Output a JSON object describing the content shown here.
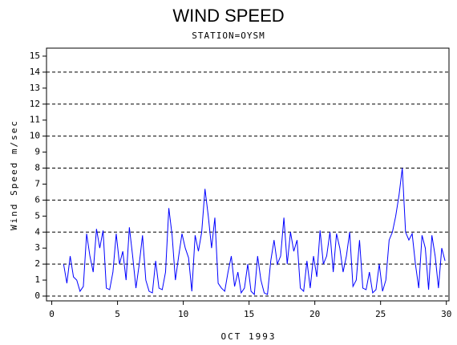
{
  "chart_data": {
    "type": "line",
    "title": "WIND SPEED",
    "subtitle": "STATION=OYSM",
    "x_label": "OCT 1993",
    "y_label": "Wind Speed m/sec",
    "xlim": [
      -0.4,
      30.2
    ],
    "xticks": [
      0,
      5,
      10,
      15,
      20,
      25,
      30
    ],
    "ylim": [
      -0.3,
      15.5
    ],
    "yticks": [
      0,
      1,
      2,
      3,
      4,
      5,
      6,
      7,
      8,
      9,
      10,
      11,
      12,
      13,
      14,
      15
    ],
    "grid_y": [
      0,
      2,
      4,
      6,
      8,
      10,
      12,
      14
    ],
    "x": [
      0.9,
      1.15,
      1.4,
      1.65,
      1.9,
      2.15,
      2.4,
      2.65,
      2.9,
      3.15,
      3.4,
      3.65,
      3.9,
      4.15,
      4.4,
      4.65,
      4.9,
      5.15,
      5.4,
      5.65,
      5.9,
      6.15,
      6.4,
      6.65,
      6.9,
      7.15,
      7.4,
      7.65,
      7.9,
      8.15,
      8.4,
      8.65,
      8.9,
      9.15,
      9.4,
      9.65,
      9.9,
      10.15,
      10.4,
      10.65,
      10.9,
      11.15,
      11.4,
      11.65,
      11.9,
      12.15,
      12.4,
      12.65,
      12.9,
      13.15,
      13.4,
      13.65,
      13.9,
      14.15,
      14.4,
      14.65,
      14.9,
      15.15,
      15.4,
      15.65,
      15.9,
      16.15,
      16.4,
      16.65,
      16.9,
      17.15,
      17.4,
      17.65,
      17.9,
      18.15,
      18.4,
      18.65,
      18.9,
      19.15,
      19.4,
      19.65,
      19.9,
      20.15,
      20.4,
      20.65,
      20.9,
      21.15,
      21.4,
      21.65,
      21.9,
      22.15,
      22.4,
      22.65,
      22.9,
      23.15,
      23.4,
      23.65,
      23.9,
      24.15,
      24.4,
      24.65,
      24.9,
      25.15,
      25.4,
      25.65,
      25.9,
      26.15,
      26.4,
      26.65,
      26.9,
      27.15,
      27.4,
      27.65,
      27.9,
      28.15,
      28.4,
      28.65,
      28.9,
      29.15,
      29.4,
      29.65,
      29.9
    ],
    "series": [
      {
        "color": "#0000ff",
        "values": [
          2.0,
          0.8,
          2.5,
          1.2,
          1.0,
          0.3,
          0.6,
          3.9,
          2.5,
          1.5,
          4.2,
          3.0,
          4.1,
          0.5,
          0.4,
          1.5,
          3.9,
          2.0,
          2.8,
          1.0,
          4.3,
          2.5,
          0.5,
          2.0,
          3.8,
          1.0,
          0.3,
          0.2,
          2.2,
          0.5,
          0.4,
          1.5,
          5.5,
          3.8,
          1.0,
          2.5,
          3.9,
          3.0,
          2.4,
          0.3,
          3.8,
          2.8,
          4.0,
          6.7,
          5.0,
          3.0,
          4.9,
          0.8,
          0.5,
          0.3,
          1.5,
          2.5,
          0.6,
          1.5,
          0.2,
          0.5,
          2.0,
          0.3,
          0.1,
          2.5,
          1.0,
          0.2,
          0.1,
          2.2,
          3.5,
          2.0,
          2.5,
          4.9,
          2.0,
          4.0,
          2.8,
          3.5,
          0.5,
          0.3,
          2.2,
          0.5,
          2.5,
          1.2,
          4.1,
          2.0,
          2.5,
          4.0,
          1.5,
          3.9,
          3.0,
          1.5,
          2.5,
          4.0,
          0.6,
          1.0,
          3.5,
          0.5,
          0.4,
          1.5,
          0.2,
          0.4,
          2.0,
          0.3,
          1.0,
          3.5,
          4.0,
          5.0,
          6.3,
          8.0,
          4.0,
          3.5,
          3.9,
          2.0,
          0.5,
          3.8,
          3.0,
          0.4,
          3.8,
          2.5,
          0.5,
          3.0,
          2.2
        ]
      }
    ]
  }
}
